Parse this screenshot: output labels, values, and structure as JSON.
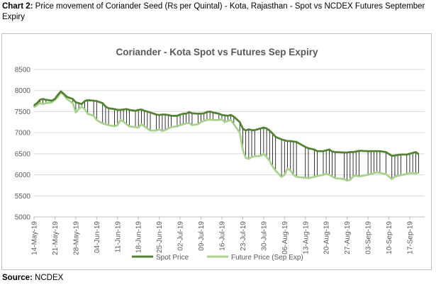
{
  "caption": {
    "prefix": "Chart 2:",
    "text": " Price movement of Coriander Seed (Rs per Quintal) - Kota, Rajasthan - Spot vs NCDEX Futures September Expiry"
  },
  "source": {
    "prefix": "Source:",
    "text": " NCDEX"
  },
  "colors": {
    "spot": "#548235",
    "future": "#a9d18e",
    "grid": "#d9d9d9",
    "drop_line": "#000000",
    "axis_text": "#595959"
  },
  "chart_data": {
    "type": "line",
    "title": "Coriander - Kota Spot vs Futures Sep Expiry",
    "ylim": [
      5000,
      8500
    ],
    "yticks": [
      5000,
      5500,
      6000,
      6500,
      7000,
      7500,
      8000,
      8500
    ],
    "x_tick_labels": [
      "14-May-19",
      "21-May-19",
      "28-May-19",
      "04-Jun-19",
      "11-Jun-19",
      "18-Jun-19",
      "25-Jun-19",
      "02-Jul-19",
      "09-Jul-19",
      "16-Jul-19",
      "23-Jul-19",
      "30-Jul-19",
      "06-Aug-19",
      "13-Aug-19",
      "20-Aug-19",
      "27-Aug-19",
      "03-Sep-19",
      "10-Sep-19",
      "17-Sep-19"
    ],
    "grid": true,
    "drop_lines": true,
    "legend_position": "bottom",
    "series": [
      {
        "name": "Spot Price",
        "x": [
          "14-May-19",
          "15-May-19",
          "16-May-19",
          "17-May-19",
          "18-May-19",
          "20-May-19",
          "21-May-19",
          "22-May-19",
          "23-May-19",
          "24-May-19",
          "25-May-19",
          "27-May-19",
          "28-May-19",
          "29-May-19",
          "30-May-19",
          "31-May-19",
          "01-Jun-19",
          "03-Jun-19",
          "04-Jun-19",
          "06-Jun-19",
          "07-Jun-19",
          "08-Jun-19",
          "10-Jun-19",
          "11-Jun-19",
          "12-Jun-19",
          "13-Jun-19",
          "14-Jun-19",
          "15-Jun-19",
          "17-Jun-19",
          "18-Jun-19",
          "19-Jun-19",
          "20-Jun-19",
          "21-Jun-19",
          "22-Jun-19",
          "24-Jun-19",
          "25-Jun-19",
          "26-Jun-19",
          "27-Jun-19",
          "28-Jun-19",
          "29-Jun-19",
          "01-Jul-19",
          "02-Jul-19",
          "03-Jul-19",
          "04-Jul-19",
          "05-Jul-19",
          "06-Jul-19",
          "08-Jul-19",
          "09-Jul-19",
          "10-Jul-19",
          "11-Jul-19",
          "12-Jul-19",
          "13-Jul-19",
          "15-Jul-19",
          "16-Jul-19",
          "17-Jul-19",
          "18-Jul-19",
          "19-Jul-19",
          "20-Jul-19",
          "22-Jul-19",
          "23-Jul-19",
          "24-Jul-19",
          "25-Jul-19",
          "26-Jul-19",
          "27-Jul-19",
          "29-Jul-19",
          "30-Jul-19",
          "31-Jul-19",
          "01-Aug-19",
          "02-Aug-19",
          "03-Aug-19",
          "05-Aug-19",
          "06-Aug-19",
          "07-Aug-19",
          "08-Aug-19",
          "09-Aug-19",
          "10-Aug-19",
          "13-Aug-19",
          "14-Aug-19",
          "16-Aug-19",
          "17-Aug-19",
          "19-Aug-19",
          "20-Aug-19",
          "21-Aug-19",
          "22-Aug-19",
          "23-Aug-19",
          "26-Aug-19",
          "27-Aug-19",
          "28-Aug-19",
          "29-Aug-19",
          "30-Aug-19",
          "31-Aug-19",
          "03-Sep-19",
          "04-Sep-19",
          "05-Sep-19",
          "06-Sep-19",
          "07-Sep-19",
          "09-Sep-19",
          "11-Sep-19",
          "12-Sep-19",
          "13-Sep-19",
          "14-Sep-19",
          "16-Sep-19",
          "17-Sep-19",
          "18-Sep-19",
          "19-Sep-19",
          "20-Sep-19"
        ],
        "values": [
          7650,
          7700,
          7780,
          7800,
          7780,
          7760,
          7800,
          7900,
          7980,
          7920,
          7850,
          7800,
          7720,
          7700,
          7680,
          7750,
          7770,
          7760,
          7750,
          7700,
          7620,
          7580,
          7560,
          7540,
          7540,
          7550,
          7560,
          7540,
          7520,
          7540,
          7550,
          7520,
          7500,
          7480,
          7430,
          7420,
          7430,
          7430,
          7420,
          7400,
          7400,
          7430,
          7450,
          7450,
          7490,
          7460,
          7450,
          7450,
          7460,
          7490,
          7500,
          7480,
          7450,
          7420,
          7410,
          7400,
          7420,
          7380,
          7250,
          7100,
          7050,
          7080,
          7060,
          7060,
          7100,
          7120,
          7100,
          7050,
          6980,
          6900,
          6840,
          6820,
          6800,
          6800,
          6790,
          6780,
          6660,
          6630,
          6600,
          6560,
          6560,
          6580,
          6600,
          6550,
          6540,
          6530,
          6530,
          6540,
          6540,
          6550,
          6570,
          6560,
          6560,
          6560,
          6560,
          6560,
          6540,
          6450,
          6460,
          6470,
          6480,
          6480,
          6500,
          6520,
          6540,
          6490
        ],
        "color": "#548235"
      },
      {
        "name": "Future Price (Sep Exp)",
        "x": [
          "14-May-19",
          "15-May-19",
          "16-May-19",
          "17-May-19",
          "18-May-19",
          "20-May-19",
          "21-May-19",
          "22-May-19",
          "23-May-19",
          "24-May-19",
          "25-May-19",
          "27-May-19",
          "28-May-19",
          "29-May-19",
          "30-May-19",
          "31-May-19",
          "01-Jun-19",
          "03-Jun-19",
          "04-Jun-19",
          "06-Jun-19",
          "07-Jun-19",
          "08-Jun-19",
          "10-Jun-19",
          "11-Jun-19",
          "12-Jun-19",
          "13-Jun-19",
          "14-Jun-19",
          "15-Jun-19",
          "17-Jun-19",
          "18-Jun-19",
          "19-Jun-19",
          "20-Jun-19",
          "21-Jun-19",
          "22-Jun-19",
          "24-Jun-19",
          "25-Jun-19",
          "26-Jun-19",
          "27-Jun-19",
          "28-Jun-19",
          "29-Jun-19",
          "01-Jul-19",
          "02-Jul-19",
          "03-Jul-19",
          "04-Jul-19",
          "05-Jul-19",
          "06-Jul-19",
          "08-Jul-19",
          "09-Jul-19",
          "10-Jul-19",
          "11-Jul-19",
          "12-Jul-19",
          "13-Jul-19",
          "15-Jul-19",
          "16-Jul-19",
          "17-Jul-19",
          "18-Jul-19",
          "19-Jul-19",
          "20-Jul-19",
          "22-Jul-19",
          "23-Jul-19",
          "24-Jul-19",
          "25-Jul-19",
          "26-Jul-19",
          "27-Jul-19",
          "29-Jul-19",
          "30-Jul-19",
          "31-Jul-19",
          "01-Aug-19",
          "02-Aug-19",
          "03-Aug-19",
          "05-Aug-19",
          "06-Aug-19",
          "07-Aug-19",
          "08-Aug-19",
          "09-Aug-19",
          "10-Aug-19",
          "13-Aug-19",
          "14-Aug-19",
          "16-Aug-19",
          "17-Aug-19",
          "19-Aug-19",
          "20-Aug-19",
          "21-Aug-19",
          "22-Aug-19",
          "23-Aug-19",
          "26-Aug-19",
          "27-Aug-19",
          "28-Aug-19",
          "29-Aug-19",
          "30-Aug-19",
          "31-Aug-19",
          "03-Sep-19",
          "04-Sep-19",
          "05-Sep-19",
          "06-Sep-19",
          "07-Sep-19",
          "09-Sep-19",
          "11-Sep-19",
          "12-Sep-19",
          "13-Sep-19",
          "14-Sep-19",
          "16-Sep-19",
          "17-Sep-19",
          "18-Sep-19",
          "19-Sep-19",
          "20-Sep-19"
        ],
        "values": [
          7600,
          7650,
          7700,
          7680,
          7700,
          7720,
          7780,
          7850,
          7950,
          7900,
          7800,
          7700,
          7480,
          7560,
          7620,
          7560,
          7450,
          7400,
          7300,
          7220,
          7200,
          7180,
          7150,
          7180,
          7300,
          7260,
          7200,
          7150,
          7130,
          7120,
          7200,
          7150,
          7100,
          7050,
          7050,
          7080,
          7040,
          7060,
          7100,
          7130,
          7150,
          7180,
          7200,
          7220,
          7230,
          7180,
          7200,
          7250,
          7280,
          7300,
          7310,
          7300,
          7300,
          7320,
          7250,
          7280,
          7300,
          7200,
          7000,
          6600,
          6400,
          6380,
          6420,
          6440,
          6450,
          6500,
          6420,
          6330,
          6200,
          6100,
          5950,
          6000,
          6150,
          6100,
          6000,
          5950,
          5930,
          5920,
          5950,
          5970,
          6000,
          6020,
          6000,
          5960,
          5920,
          5900,
          5860,
          5880,
          5960,
          5980,
          5960,
          6000,
          6020,
          6040,
          6060,
          6040,
          6020,
          5900,
          5950,
          5980,
          5990,
          6020,
          6040,
          6040,
          6030,
          6050
        ],
        "color": "#a9d18e"
      }
    ]
  }
}
